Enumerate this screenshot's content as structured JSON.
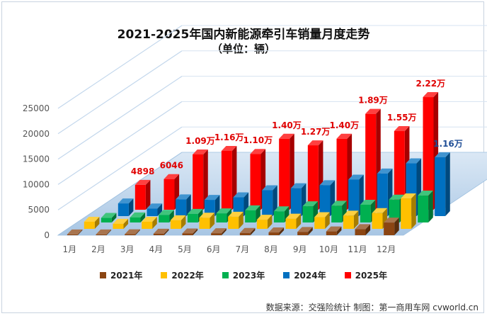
{
  "header": {
    "title": "2021-2025年国内新能源牵引车销量月度走势",
    "subtitle": "（单位：辆）"
  },
  "source": "数据来源：交强险统计 制图：第一商用车网 cvworld.cn",
  "chart_data": {
    "type": "bar",
    "style": "3d-clustered",
    "title": "2021-2025年国内新能源牵引车销量月度走势",
    "ylabel": "单位：辆",
    "ylim": [
      0,
      25000
    ],
    "yticks": [
      "0",
      "5000",
      "10000",
      "15000",
      "20000",
      "25000"
    ],
    "yticks_values": [
      0,
      5000,
      10000,
      15000,
      20000,
      25000
    ],
    "categories": [
      "1月",
      "2月",
      "3月",
      "4月",
      "5月",
      "6月",
      "7月",
      "8月",
      "9月",
      "10月",
      "11月",
      "12月"
    ],
    "series": [
      {
        "name": "2021年",
        "color": "#8b4513",
        "values": [
          150,
          150,
          200,
          300,
          350,
          400,
          450,
          550,
          650,
          750,
          1200,
          2500
        ]
      },
      {
        "name": "2022年",
        "color": "#ffc000",
        "values": [
          1400,
          1000,
          1400,
          1700,
          2200,
          2400,
          1800,
          2000,
          2300,
          2600,
          3100,
          6000
        ]
      },
      {
        "name": "2023年",
        "color": "#00b050",
        "values": [
          900,
          1000,
          1500,
          1700,
          1800,
          2400,
          2200,
          3200,
          3300,
          3500,
          4500,
          5300
        ]
      },
      {
        "name": "2024年",
        "color": "#0070c0",
        "values": [
          2500,
          1500,
          3300,
          3200,
          3700,
          5100,
          5500,
          6100,
          7200,
          8400,
          10400,
          11600
        ]
      },
      {
        "name": "2025年",
        "color": "#ff0000",
        "values": [
          4898,
          6046,
          10900,
          11600,
          11000,
          14000,
          12700,
          14000,
          18900,
          15500,
          22200,
          null
        ]
      }
    ],
    "data_labels": [
      {
        "series": "2025年",
        "index": 0,
        "text": "4898"
      },
      {
        "series": "2025年",
        "index": 1,
        "text": "6046"
      },
      {
        "series": "2025年",
        "index": 2,
        "text": "1.09万"
      },
      {
        "series": "2025年",
        "index": 3,
        "text": "1.16万"
      },
      {
        "series": "2025年",
        "index": 4,
        "text": "1.10万"
      },
      {
        "series": "2025年",
        "index": 5,
        "text": "1.40万"
      },
      {
        "series": "2025年",
        "index": 6,
        "text": "1.27万"
      },
      {
        "series": "2025年",
        "index": 7,
        "text": "1.40万"
      },
      {
        "series": "2025年",
        "index": 8,
        "text": "1.89万"
      },
      {
        "series": "2025年",
        "index": 9,
        "text": "1.55万"
      },
      {
        "series": "2025年",
        "index": 10,
        "text": "2.22万"
      },
      {
        "series": "2024年",
        "index": 11,
        "text": "1.16万"
      }
    ],
    "legend": [
      "2021年",
      "2022年",
      "2023年",
      "2024年",
      "2025年"
    ],
    "legend_position": "bottom"
  }
}
